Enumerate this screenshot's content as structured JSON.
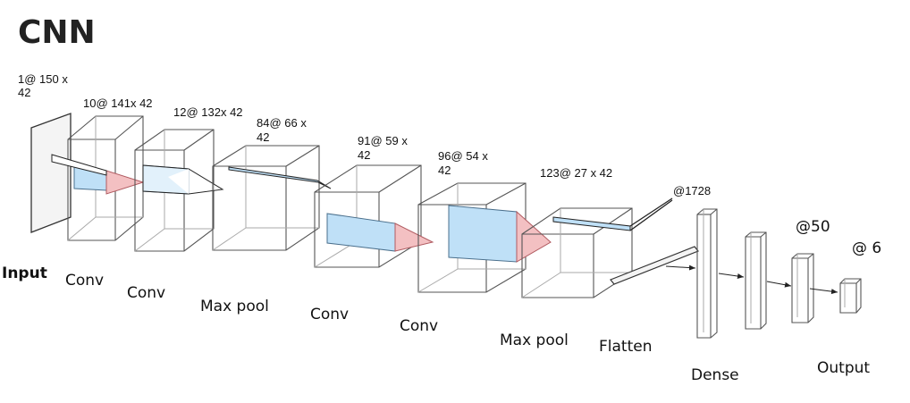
{
  "title": "CNN",
  "dims": {
    "input_a": "1@ 150 x",
    "input_b": "42",
    "conv1": "10@ 141x 42",
    "conv2": "12@ 132x 42",
    "pool1_a": "84@ 66 x",
    "pool1_b": "42",
    "conv3_a": "91@ 59 x",
    "conv3_b": "42",
    "conv4_a": "96@ 54 x",
    "conv4_b": "42",
    "pool2": "123@ 27 x 42",
    "flatten": "@1728",
    "dense": "@50",
    "output": "@ 6"
  },
  "labels": {
    "input": "Input",
    "conv1": "Conv",
    "conv2": "Conv",
    "pool1": "Max pool",
    "conv3": "Conv",
    "conv4": "Conv",
    "pool2": "Max pool",
    "flatten": "Flatten",
    "dense": "Dense",
    "output": "Output"
  },
  "colors": {
    "kernel_fill": "#bfe0f7",
    "kernel_out": "#f3c0c2",
    "edge": "#555555"
  }
}
